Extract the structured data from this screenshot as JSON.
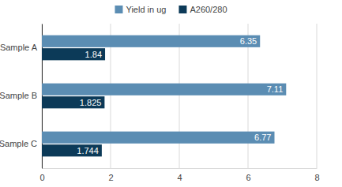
{
  "chart_data": {
    "type": "bar",
    "orientation": "horizontal",
    "categories": [
      "Sample A",
      "Sample B",
      "Sample C"
    ],
    "series": [
      {
        "name": "Yield in ug",
        "color": "#5b8db3",
        "values": [
          6.35,
          7.11,
          6.77
        ]
      },
      {
        "name": "A260/280",
        "color": "#0c3a58",
        "values": [
          1.84,
          1.825,
          1.744
        ]
      }
    ],
    "xlim": [
      0,
      8
    ],
    "xticks": [
      0,
      2,
      4,
      6,
      8
    ],
    "grid": true,
    "legend": "top",
    "data_labels": true
  }
}
